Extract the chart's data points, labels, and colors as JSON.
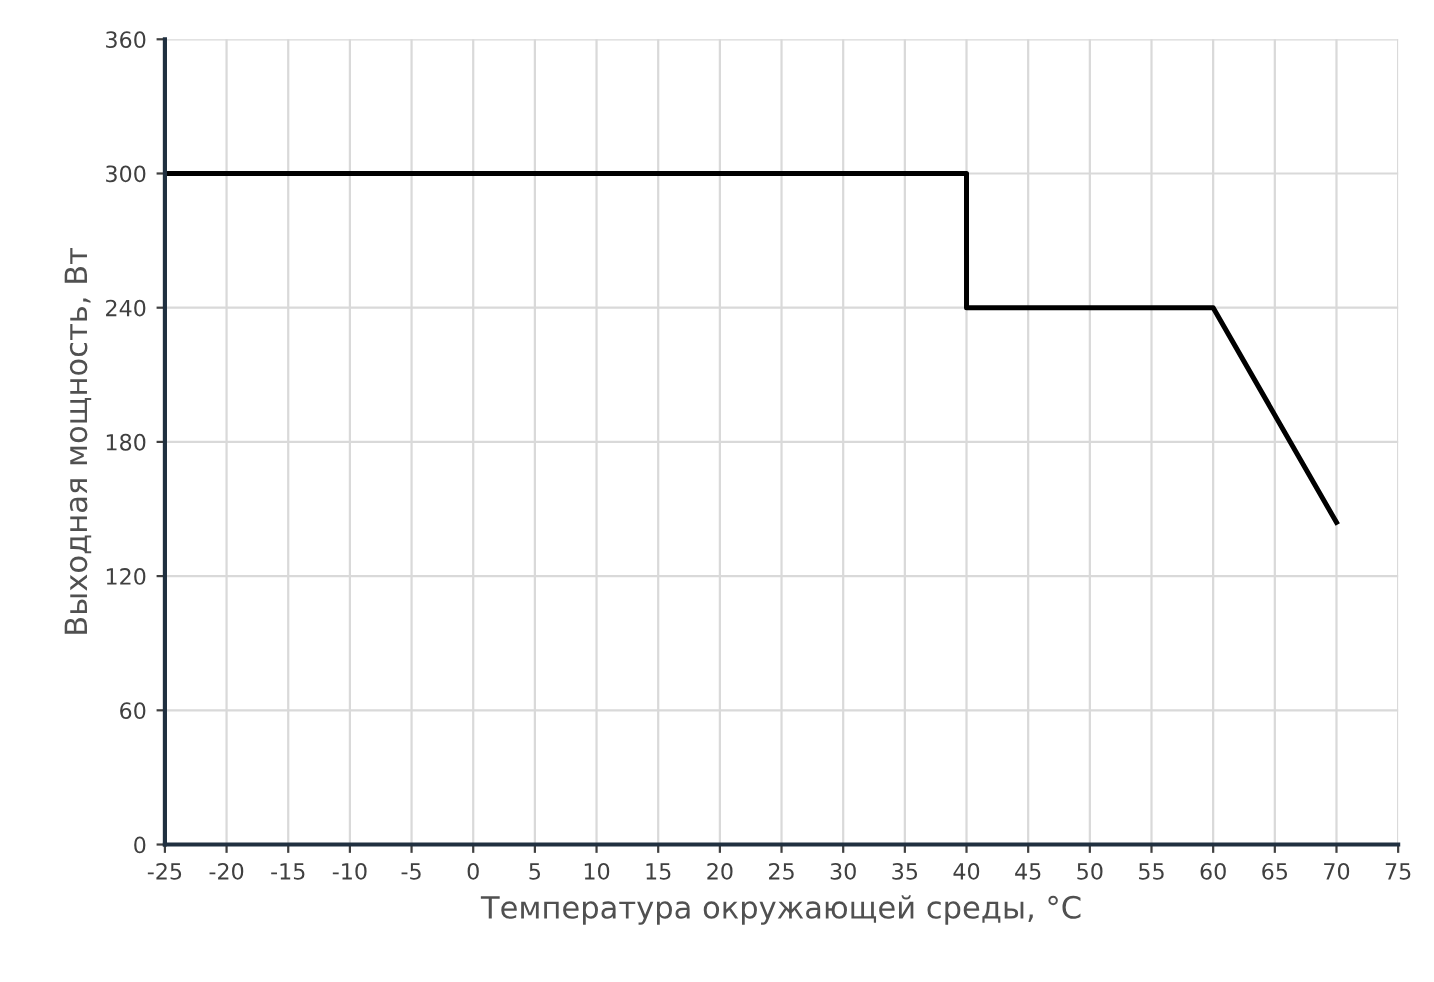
{
  "chart_data": {
    "type": "line",
    "xlabel": "Температура окружающей среды, °C",
    "ylabel": "Выходная мощность, Вт",
    "series": [
      {
        "color": "#000000",
        "x": [
          -25,
          40,
          40,
          60,
          70
        ],
        "values": [
          300,
          300,
          240,
          240,
          144
        ]
      }
    ],
    "xlim": [
      -25,
      75
    ],
    "xticks": [
      -25,
      -20,
      -15,
      -10,
      -5,
      0,
      5,
      10,
      15,
      20,
      25,
      30,
      35,
      40,
      45,
      50,
      55,
      60,
      65,
      70,
      75
    ],
    "ylim": [
      0,
      360
    ],
    "yticks": [
      0,
      60,
      120,
      180,
      240,
      300,
      360
    ],
    "grid": true,
    "marker": "none",
    "line_style": "solid"
  }
}
